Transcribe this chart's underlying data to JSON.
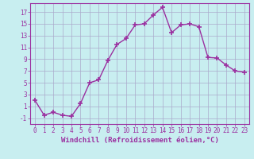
{
  "x": [
    0,
    1,
    2,
    3,
    4,
    5,
    6,
    7,
    8,
    9,
    10,
    11,
    12,
    13,
    14,
    15,
    16,
    17,
    18,
    19,
    20,
    21,
    22,
    23
  ],
  "y": [
    2,
    -0.5,
    0,
    -0.5,
    -0.7,
    1.5,
    5,
    5.5,
    8.8,
    11.5,
    12.5,
    14.8,
    15,
    16.5,
    17.8,
    13.5,
    14.8,
    15,
    14.5,
    9.3,
    9.2,
    8,
    7,
    6.8
  ],
  "line_color": "#9B30A0",
  "marker": "+",
  "marker_size": 4,
  "marker_color": "#9B30A0",
  "bg_color": "#C8EEF0",
  "grid_color": "#AAAACC",
  "xlabel": "Windchill (Refroidissement éolien,°C)",
  "xlabel_fontsize": 6.5,
  "ylim": [
    -2,
    18.5
  ],
  "yticks": [
    -1,
    1,
    3,
    5,
    7,
    9,
    11,
    13,
    15,
    17
  ],
  "xticks": [
    0,
    1,
    2,
    3,
    4,
    5,
    6,
    7,
    8,
    9,
    10,
    11,
    12,
    13,
    14,
    15,
    16,
    17,
    18,
    19,
    20,
    21,
    22,
    23
  ],
  "tick_fontsize": 5.5,
  "line_width": 1.0
}
